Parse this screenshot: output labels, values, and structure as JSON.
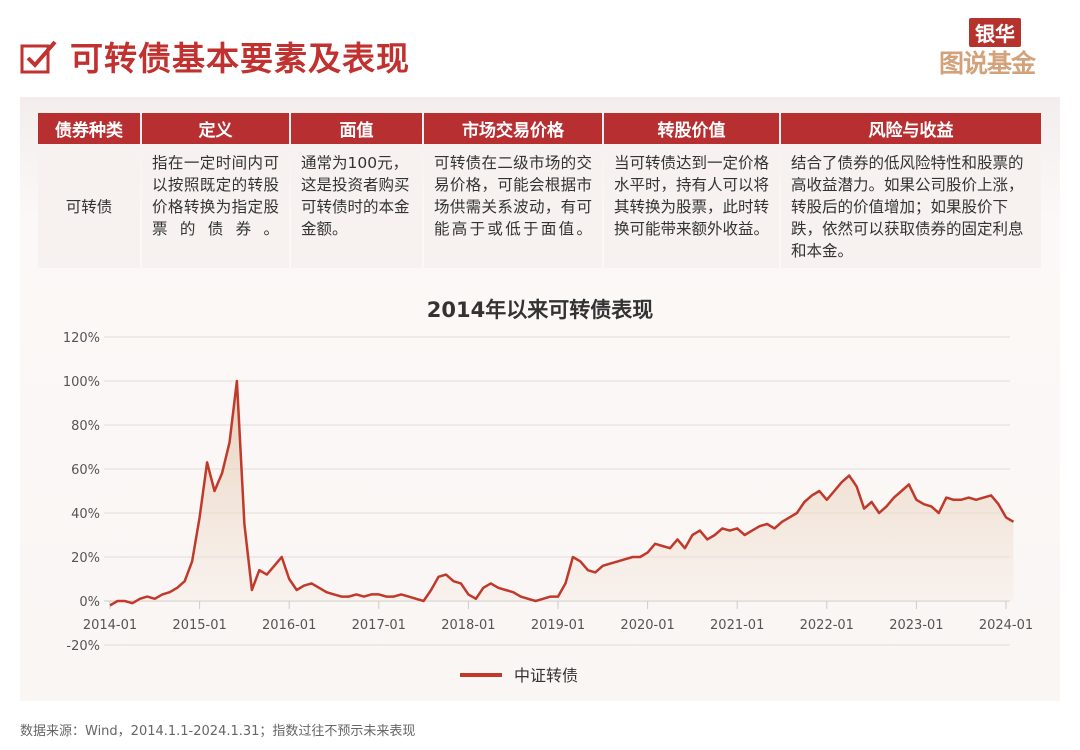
{
  "header": {
    "title": "可转债基本要素及表现",
    "logo_top": "银华",
    "logo_bottom": "图说基金"
  },
  "table": {
    "headers": [
      "债券种类",
      "定义",
      "面值",
      "市场交易价格",
      "转股价值",
      "风险与收益"
    ],
    "row": [
      "可转债",
      "指在一定时间内可以按照既定的转股价格转换为指定股票的债券。",
      "通常为100元，这是投资者购买可转债时的本金金额。",
      "可转债在二级市场的交易价格，可能会根据市场供需关系波动，有可能高于或低于面值。",
      "当可转债达到一定价格水平时，持有人可以将其转换为股票，此时转换可能带来额外收益。",
      "结合了债券的低风险特性和股票的高收益潜力。如果公司股价上涨，转股后的价值增加；如果股价下跌，依然可以获取债券的固定利息和本金。"
    ]
  },
  "chart_data": {
    "type": "area",
    "title": "2014年以来可转债表现",
    "xlabel": "",
    "ylabel": "",
    "ylim": [
      -20,
      120
    ],
    "yticks": [
      "-20%",
      "0%",
      "20%",
      "40%",
      "60%",
      "80%",
      "100%",
      "120%"
    ],
    "yticks_values": [
      -20,
      0,
      20,
      40,
      60,
      80,
      100,
      120
    ],
    "xticks": [
      "2014-01",
      "2015-01",
      "2016-01",
      "2017-01",
      "2018-01",
      "2019-01",
      "2020-01",
      "2021-01",
      "2022-01",
      "2023-01",
      "2024-01"
    ],
    "grid": true,
    "legend_position": "bottom",
    "x_start": "2014-01",
    "x_step": "month",
    "series": [
      {
        "name": "中证转债",
        "color": "#c0392b",
        "values": [
          -2,
          0,
          0,
          -1,
          1,
          2,
          1,
          3,
          4,
          6,
          9,
          18,
          38,
          63,
          50,
          58,
          72,
          100,
          35,
          5,
          14,
          12,
          16,
          20,
          10,
          5,
          7,
          8,
          6,
          4,
          3,
          2,
          2,
          3,
          2,
          3,
          3,
          2,
          2,
          3,
          2,
          1,
          0,
          5,
          11,
          12,
          9,
          8,
          3,
          1,
          6,
          8,
          6,
          5,
          4,
          2,
          1,
          0,
          1,
          2,
          2,
          8,
          20,
          18,
          14,
          13,
          16,
          17,
          18,
          19,
          20,
          20,
          22,
          26,
          25,
          24,
          28,
          24,
          30,
          32,
          28,
          30,
          33,
          32,
          33,
          30,
          32,
          34,
          35,
          33,
          36,
          38,
          40,
          45,
          48,
          50,
          46,
          50,
          54,
          57,
          52,
          42,
          45,
          40,
          43,
          47,
          50,
          53,
          46,
          44,
          43,
          40,
          47,
          46,
          46,
          47,
          46,
          47,
          48,
          44,
          38,
          36
        ]
      }
    ]
  },
  "footer": "数据来源：Wind，2014.1.1-2024.1.31；指数过往不预示未来表现"
}
